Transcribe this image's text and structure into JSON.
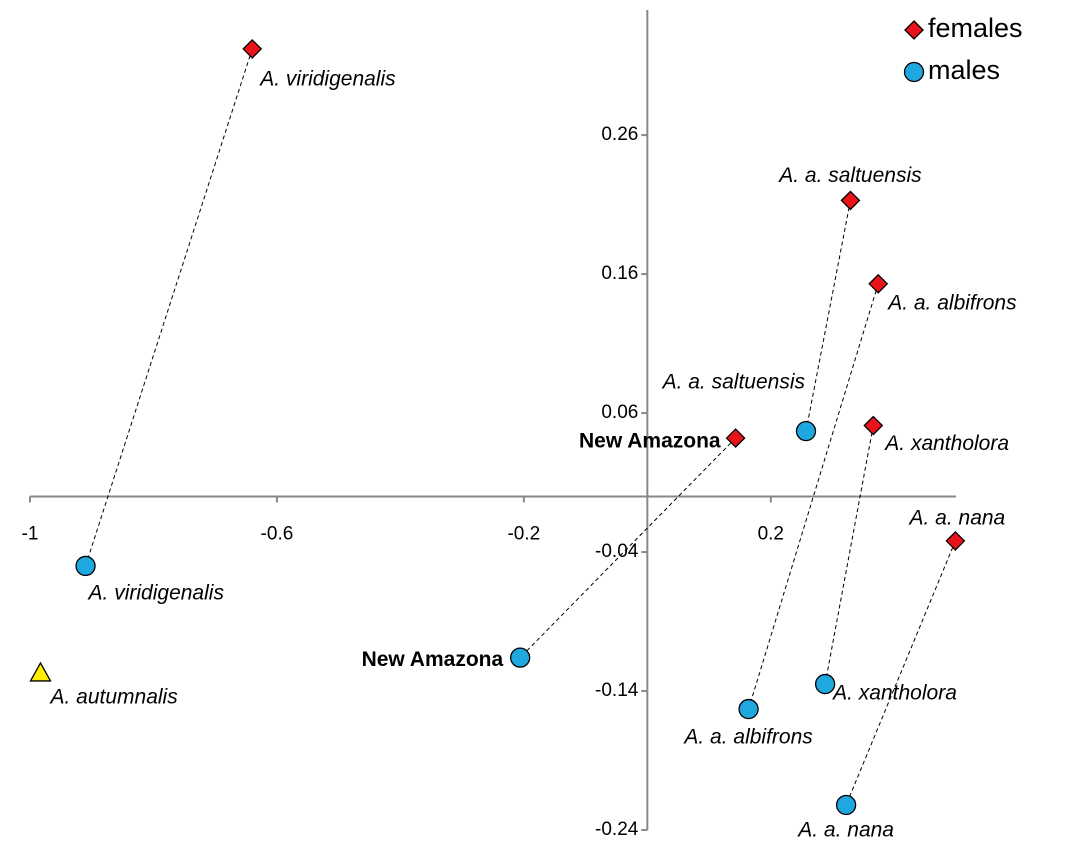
{
  "chart_data": {
    "type": "scatter",
    "xlim": [
      -1,
      0.5
    ],
    "ylim": [
      -0.24,
      0.35
    ],
    "xticks": [
      -1,
      -0.6,
      -0.2,
      0.2
    ],
    "yticks": [
      0.26,
      0.16,
      0.06,
      -0.04,
      -0.14,
      -0.24
    ],
    "legend": "top-right",
    "series": [
      {
        "name": "females",
        "marker": "diamond",
        "color": "#e8141a",
        "labels": [
          "A. viridigenalis",
          "A. a. saltuensis",
          "A. a. albifrons",
          "New Amazona",
          "A. xantholora",
          "A. a. nana"
        ],
        "x": [
          -0.64,
          0.329,
          0.374,
          0.143,
          0.366,
          0.499
        ],
        "values": [
          0.322,
          0.213,
          0.153,
          0.042,
          0.051,
          -0.032
        ]
      },
      {
        "name": "males",
        "marker": "circle",
        "color": "#1fa8e0",
        "labels": [
          "A. viridigenalis",
          "A. a. saltuensis",
          "A. a. albifrons",
          "New Amazona",
          "A. xantholora",
          "A. a. nana"
        ],
        "x": [
          -0.91,
          0.257,
          0.164,
          -0.206,
          0.288,
          0.322
        ],
        "values": [
          -0.05,
          0.047,
          -0.153,
          -0.116,
          -0.135,
          -0.222
        ]
      }
    ],
    "outgroup": {
      "label": "A. autumnalis",
      "marker": "triangle",
      "color": "#ffee00",
      "x": -0.983,
      "y": -0.127
    }
  }
}
